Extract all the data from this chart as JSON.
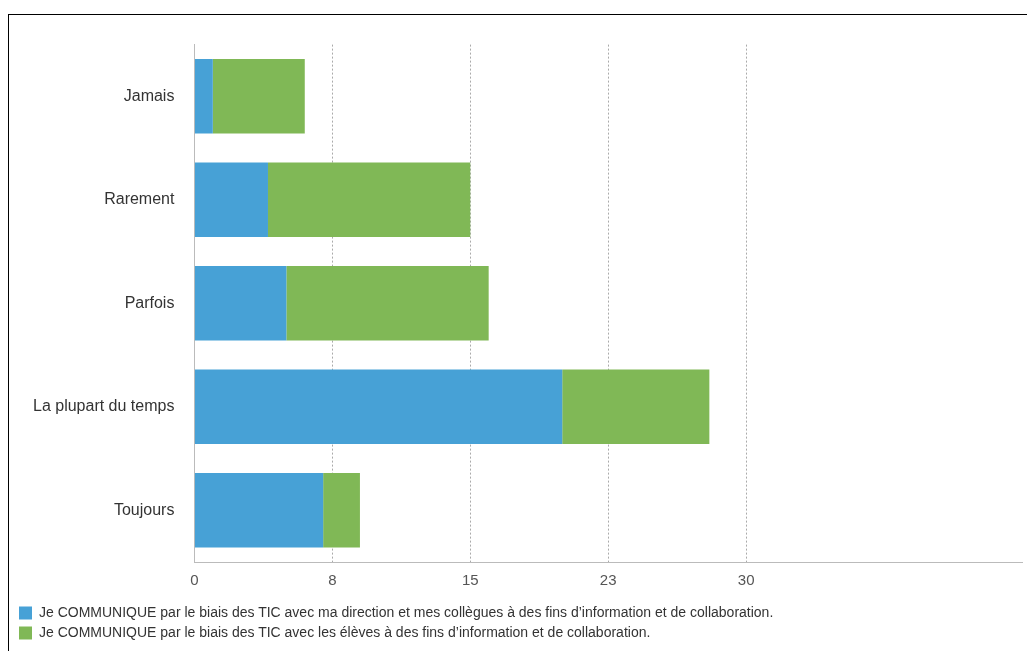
{
  "chart_data": {
    "type": "bar",
    "orientation": "horizontal",
    "stacked": true,
    "categories": [
      "Jamais",
      "Rarement",
      "Parfois",
      "La plupart du temps",
      "Toujours"
    ],
    "series": [
      {
        "name": "Je COMMUNIQUE par le biais des TIC avec ma direction et mes collègues à des fins d’information et de collaboration.",
        "color": "#47a1d6",
        "values": [
          1,
          4,
          5,
          20,
          7
        ]
      },
      {
        "name": "Je COMMUNIQUE par le biais des TIC avec les élèves à des fins d’information et de collaboration.",
        "color": "#80b856",
        "values": [
          5,
          11,
          11,
          8,
          2
        ]
      }
    ],
    "xlim": [
      0,
      45
    ],
    "xticks": [
      0,
      {
        "value": 7.5,
        "label": "8"
      },
      15,
      {
        "value": 22.5,
        "label": "23"
      },
      30
    ],
    "grid": "x",
    "legend": "bottom left"
  }
}
